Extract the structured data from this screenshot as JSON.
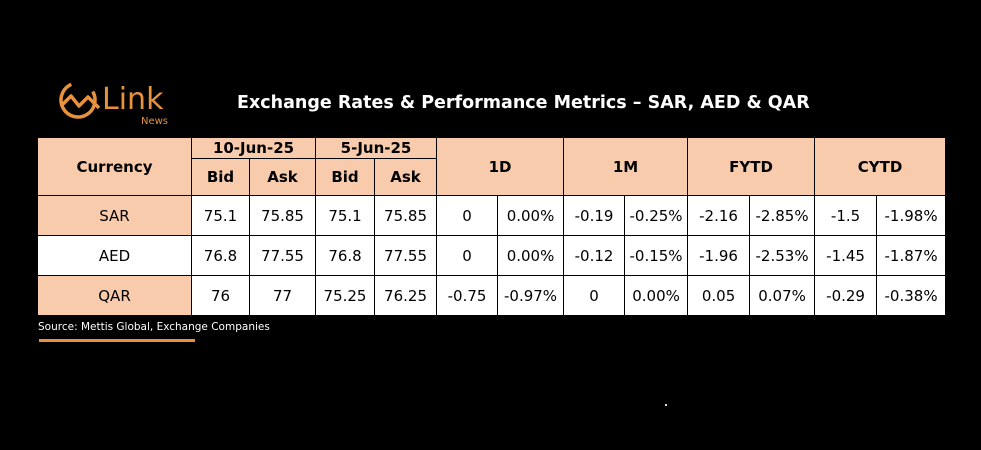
{
  "logo": {
    "name": "Link",
    "sub": "News"
  },
  "title": "Exchange Rates & Performance Metrics – SAR, AED & QAR",
  "header": {
    "currency": "Currency",
    "date1": "10-Jun-25",
    "date2": "5-Jun-25",
    "bid": "Bid",
    "ask": "Ask",
    "d1": "1D",
    "m1": "1M",
    "fytd": "FYTD",
    "cytd": "CYTD"
  },
  "rows": [
    {
      "currency": "SAR",
      "bid1": "75.1",
      "ask1": "75.85",
      "bid2": "75.1",
      "ask2": "75.85",
      "d1_abs": "0",
      "d1_pct": "0.00%",
      "m1_abs": "-0.19",
      "m1_pct": "-0.25%",
      "fytd_abs": "-2.16",
      "fytd_pct": "-2.85%",
      "cytd_abs": "-1.5",
      "cytd_pct": "-1.98%"
    },
    {
      "currency": "AED",
      "bid1": "76.8",
      "ask1": "77.55",
      "bid2": "76.8",
      "ask2": "77.55",
      "d1_abs": "0",
      "d1_pct": "0.00%",
      "m1_abs": "-0.12",
      "m1_pct": "-0.15%",
      "fytd_abs": "-1.96",
      "fytd_pct": "-2.53%",
      "cytd_abs": "-1.45",
      "cytd_pct": "-1.87%"
    },
    {
      "currency": "QAR",
      "bid1": "76",
      "ask1": "77",
      "bid2": "75.25",
      "ask2": "76.25",
      "d1_abs": "-0.75",
      "d1_pct": "-0.97%",
      "m1_abs": "0",
      "m1_pct": "0.00%",
      "fytd_abs": "0.05",
      "fytd_pct": "0.07%",
      "cytd_abs": "-0.29",
      "cytd_pct": "-0.38%"
    }
  ],
  "source": "Source: Mettis Global, Exchange Companies",
  "colors": {
    "accent": "#e8923d",
    "header_fill": "#f8cbad"
  }
}
